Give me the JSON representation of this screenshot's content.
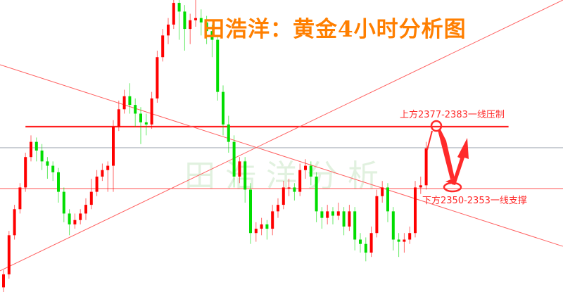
{
  "title": "田浩洋：黄金4小时分析图",
  "watermark": "田浩洋分析",
  "annotations": {
    "resistance": "上方2377-2383一线压制",
    "support": "下方2350-2353一线支撑"
  },
  "colors": {
    "up": "#ff0000",
    "down": "#00dd00",
    "title": "#ff7f00",
    "lines": "#ff3333",
    "reference_line": "#b8bec6"
  },
  "chart_data": {
    "type": "candlestick",
    "timeframe": "4H",
    "ylim": [
      2304,
      2438
    ],
    "grid": false,
    "candles_ohlc": [
      [
        2306,
        2314,
        2302,
        2312
      ],
      [
        2312,
        2332,
        2310,
        2330
      ],
      [
        2330,
        2344,
        2328,
        2342
      ],
      [
        2342,
        2354,
        2340,
        2352
      ],
      [
        2352,
        2368,
        2350,
        2366
      ],
      [
        2366,
        2376,
        2364,
        2373
      ],
      [
        2373,
        2375,
        2364,
        2369
      ],
      [
        2369,
        2372,
        2360,
        2364
      ],
      [
        2364,
        2366,
        2356,
        2362
      ],
      [
        2362,
        2364,
        2355,
        2359
      ],
      [
        2359,
        2361,
        2345,
        2350
      ],
      [
        2350,
        2352,
        2336,
        2340
      ],
      [
        2340,
        2342,
        2330,
        2335
      ],
      [
        2335,
        2340,
        2333,
        2337
      ],
      [
        2337,
        2342,
        2335,
        2340
      ],
      [
        2340,
        2347,
        2337,
        2344
      ],
      [
        2344,
        2356,
        2342,
        2350
      ],
      [
        2350,
        2360,
        2348,
        2357
      ],
      [
        2357,
        2363,
        2355,
        2360
      ],
      [
        2360,
        2364,
        2350,
        2362
      ],
      [
        2362,
        2383,
        2350,
        2380
      ],
      [
        2380,
        2392,
        2378,
        2388
      ],
      [
        2388,
        2397,
        2386,
        2394
      ],
      [
        2394,
        2400,
        2386,
        2390
      ],
      [
        2390,
        2393,
        2380,
        2386
      ],
      [
        2386,
        2389,
        2372,
        2382
      ],
      [
        2382,
        2386,
        2376,
        2381
      ],
      [
        2381,
        2396,
        2379,
        2393
      ],
      [
        2393,
        2415,
        2391,
        2412
      ],
      [
        2412,
        2425,
        2410,
        2422
      ],
      [
        2422,
        2430,
        2418,
        2427
      ],
      [
        2427,
        2440,
        2425,
        2437
      ],
      [
        2437,
        2440,
        2420,
        2433
      ],
      [
        2433,
        2436,
        2415,
        2425
      ],
      [
        2425,
        2432,
        2418,
        2429
      ],
      [
        2429,
        2440,
        2426,
        2430
      ],
      [
        2430,
        2434,
        2422,
        2428
      ],
      [
        2428,
        2431,
        2418,
        2424
      ],
      [
        2424,
        2427,
        2412,
        2420
      ],
      [
        2420,
        2422,
        2392,
        2396
      ],
      [
        2396,
        2399,
        2376,
        2381
      ],
      [
        2381,
        2385,
        2368,
        2373
      ],
      [
        2373,
        2376,
        2352,
        2357
      ],
      [
        2357,
        2366,
        2354,
        2364
      ],
      [
        2364,
        2366,
        2345,
        2351
      ],
      [
        2351,
        2354,
        2326,
        2331
      ],
      [
        2331,
        2336,
        2327,
        2333
      ],
      [
        2333,
        2338,
        2330,
        2335
      ],
      [
        2335,
        2337,
        2328,
        2333
      ],
      [
        2333,
        2344,
        2330,
        2341
      ],
      [
        2341,
        2347,
        2338,
        2344
      ],
      [
        2344,
        2355,
        2342,
        2352
      ],
      [
        2352,
        2356,
        2348,
        2352
      ],
      [
        2352,
        2354,
        2346,
        2350
      ],
      [
        2350,
        2363,
        2348,
        2360
      ],
      [
        2360,
        2365,
        2356,
        2362
      ],
      [
        2362,
        2364,
        2353,
        2357
      ],
      [
        2357,
        2359,
        2336,
        2341
      ],
      [
        2341,
        2343,
        2333,
        2338
      ],
      [
        2338,
        2344,
        2335,
        2341
      ],
      [
        2341,
        2343,
        2335,
        2339
      ],
      [
        2339,
        2345,
        2337,
        2341
      ],
      [
        2341,
        2343,
        2330,
        2334
      ],
      [
        2334,
        2344,
        2332,
        2341
      ],
      [
        2341,
        2343,
        2323,
        2328
      ],
      [
        2328,
        2331,
        2322,
        2326
      ],
      [
        2326,
        2329,
        2318,
        2322
      ],
      [
        2322,
        2334,
        2320,
        2331
      ],
      [
        2331,
        2351,
        2329,
        2348
      ],
      [
        2348,
        2355,
        2345,
        2352
      ],
      [
        2352,
        2354,
        2336,
        2341
      ],
      [
        2341,
        2343,
        2323,
        2328
      ],
      [
        2328,
        2331,
        2320,
        2327
      ],
      [
        2327,
        2331,
        2322,
        2328
      ],
      [
        2328,
        2334,
        2326,
        2331
      ],
      [
        2331,
        2355,
        2329,
        2352
      ],
      [
        2352,
        2357,
        2349,
        2353
      ],
      [
        2353,
        2373,
        2351,
        2370
      ]
    ],
    "horizontal_lines": [
      {
        "price": 2380,
        "role": "resistance",
        "start_candle": 4,
        "end_candle": 92
      },
      {
        "price": 2370.3,
        "role": "reference"
      },
      {
        "price": 2351.5,
        "role": "support"
      }
    ],
    "trendlines": [
      {
        "role": "descending",
        "from": [
          -0.64,
          2408.5
        ],
        "to": [
          101.9,
          2324.9
        ]
      },
      {
        "role": "ascending",
        "from": [
          -0.64,
          2313.6
        ],
        "to": [
          101.9,
          2438.3
        ]
      }
    ]
  }
}
